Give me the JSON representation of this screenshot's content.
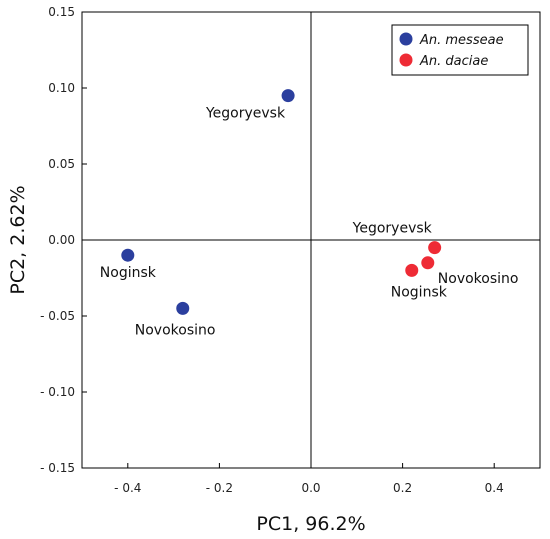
{
  "chart_data": {
    "type": "scatter",
    "title": "",
    "xlabel": "PC1, 96.2%",
    "ylabel": "PC2, 2.62%",
    "xlim": [
      -0.5,
      0.5
    ],
    "ylim": [
      -0.15,
      0.15
    ],
    "x_ticks": [
      {
        "value": -0.4,
        "label": "- 0.4"
      },
      {
        "value": -0.2,
        "label": "- 0.2"
      },
      {
        "value": 0.0,
        "label": "0.0"
      },
      {
        "value": 0.2,
        "label": "0.2"
      },
      {
        "value": 0.4,
        "label": "0.4"
      }
    ],
    "y_ticks": [
      {
        "value": 0.15,
        "label": "0.15"
      },
      {
        "value": 0.1,
        "label": "0.10"
      },
      {
        "value": 0.05,
        "label": "0.05"
      },
      {
        "value": 0.0,
        "label": "0.00"
      },
      {
        "value": -0.05,
        "label": "- 0.05"
      },
      {
        "value": -0.1,
        "label": "- 0.10"
      },
      {
        "value": -0.15,
        "label": "- 0.15"
      }
    ],
    "reference_lines": {
      "x": 0,
      "y": 0
    },
    "legend_position": "top-right",
    "series": [
      {
        "name": "An. messeae",
        "color": "#2b3f9e",
        "points": [
          {
            "x": -0.05,
            "y": 0.095,
            "label": "Yegoryevsk"
          },
          {
            "x": -0.4,
            "y": -0.01,
            "label": "Noginsk"
          },
          {
            "x": -0.28,
            "y": -0.045,
            "label": "Novokosino"
          }
        ]
      },
      {
        "name": "An. daciae",
        "color": "#ee2b35",
        "points": [
          {
            "x": 0.27,
            "y": -0.005,
            "label": "Yegoryevsk"
          },
          {
            "x": 0.255,
            "y": -0.015,
            "label": "Novokosino"
          },
          {
            "x": 0.22,
            "y": -0.02,
            "label": "Noginsk"
          }
        ]
      }
    ]
  }
}
